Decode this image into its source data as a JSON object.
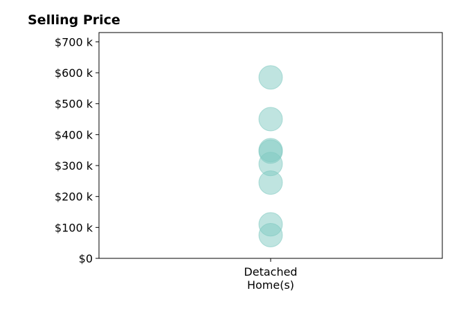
{
  "chart_data": {
    "type": "scatter",
    "title": "Selling Price",
    "xlabel": "",
    "ylabel": "",
    "categories": [
      "Detached\nHome(s)"
    ],
    "ylim": [
      0,
      730000
    ],
    "yticks": [
      0,
      100000,
      200000,
      300000,
      400000,
      500000,
      600000,
      700000
    ],
    "ytick_labels": [
      "$0",
      "$100 k",
      "$200 k",
      "$300 k",
      "$400 k",
      "$500 k",
      "$600 k",
      "$700 k"
    ],
    "series": [
      {
        "category": "Detached\nHome(s)",
        "values": [
          585000,
          450000,
          350000,
          345000,
          305000,
          245000,
          110000,
          75000
        ]
      }
    ],
    "marker_color": "#80c9c1",
    "marker_opacity": 0.5,
    "grid": false,
    "legend": false
  }
}
